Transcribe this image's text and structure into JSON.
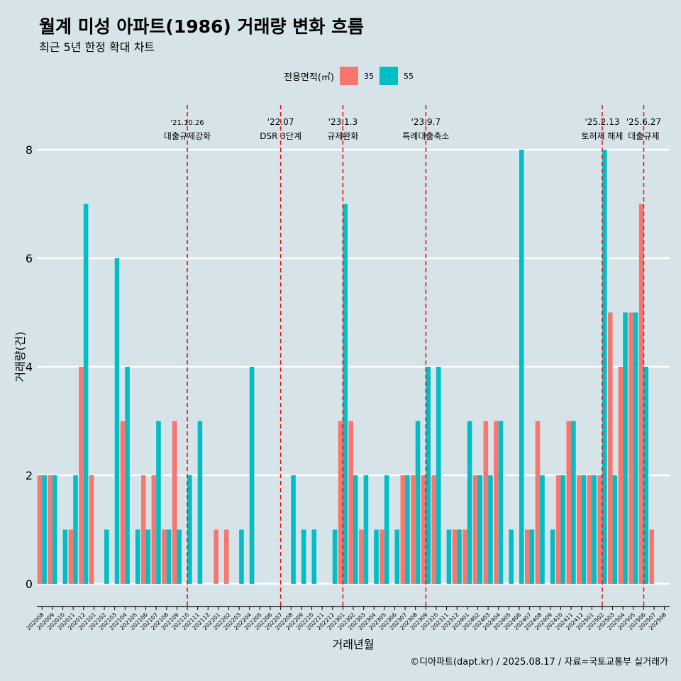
{
  "chart_data": {
    "type": "bar",
    "title": "월계 미성 아파트(1986) 거래량 변화 흐름",
    "subtitle": "최근 5년 한정 확대 차트",
    "xlabel": "거래년월",
    "ylabel": "거래량(건)",
    "ylim": [
      0,
      8
    ],
    "yticks": [
      0,
      2,
      4,
      6,
      8
    ],
    "legend_title": "전용면적(㎡)",
    "legend_position": "top",
    "caption": "©디아파트(dapt.kr) / 2025.08.17 / 자료=국토교통부 실거래가",
    "categories": [
      "202008",
      "202009",
      "202010",
      "202011",
      "202012",
      "202101",
      "202102",
      "202103",
      "202104",
      "202105",
      "202106",
      "202107",
      "202108",
      "202109",
      "202110",
      "202111",
      "202112",
      "202201",
      "202202",
      "202203",
      "202204",
      "202205",
      "202206",
      "202207",
      "202208",
      "202209",
      "202210",
      "202211",
      "202212",
      "202301",
      "202302",
      "202303",
      "202304",
      "202305",
      "202306",
      "202307",
      "202308",
      "202309",
      "202310",
      "202311",
      "202312",
      "202401",
      "202402",
      "202403",
      "202404",
      "202405",
      "202406",
      "202407",
      "202408",
      "202409",
      "202410",
      "202411",
      "202412",
      "202501",
      "202502",
      "202503",
      "202504",
      "202505",
      "202506",
      "202507",
      "202508"
    ],
    "series": [
      {
        "name": "35",
        "color": "#f8766d",
        "values": [
          2,
          2,
          0,
          1,
          4,
          2,
          0,
          0,
          3,
          0,
          2,
          2,
          1,
          3,
          0,
          0,
          0,
          1,
          1,
          0,
          0,
          0,
          0,
          0,
          0,
          0,
          0,
          0,
          0,
          3,
          3,
          1,
          0,
          1,
          0,
          2,
          2,
          2,
          2,
          0,
          1,
          1,
          2,
          3,
          3,
          0,
          0,
          1,
          3,
          0,
          2,
          3,
          2,
          2,
          2,
          5,
          4,
          5,
          7,
          1,
          0
        ]
      },
      {
        "name": "55",
        "color": "#00bfc4",
        "values": [
          2,
          2,
          1,
          2,
          7,
          0,
          1,
          6,
          4,
          1,
          1,
          3,
          1,
          1,
          2,
          3,
          0,
          0,
          0,
          1,
          4,
          0,
          0,
          0,
          2,
          1,
          1,
          0,
          1,
          7,
          2,
          2,
          1,
          2,
          1,
          2,
          3,
          4,
          4,
          1,
          1,
          3,
          2,
          2,
          3,
          1,
          8,
          1,
          2,
          1,
          2,
          3,
          2,
          2,
          8,
          2,
          5,
          5,
          4,
          0,
          0
        ]
      }
    ],
    "annotations": [
      {
        "category": "202110",
        "date": "'21.10.26",
        "label": "대출규제강화"
      },
      {
        "category": "202207",
        "date": "'22.07",
        "label": "DSR 3단계"
      },
      {
        "category": "202301",
        "date": "'23.1.3",
        "label": "규제완화"
      },
      {
        "category": "202309",
        "date": "'23.9.7",
        "label": "특례대출축소"
      },
      {
        "category": "202502",
        "date": "'25.2.13",
        "label": "토허제 해제"
      },
      {
        "category": "202506",
        "date": "'25.6.27",
        "label": "대출규제"
      }
    ]
  }
}
